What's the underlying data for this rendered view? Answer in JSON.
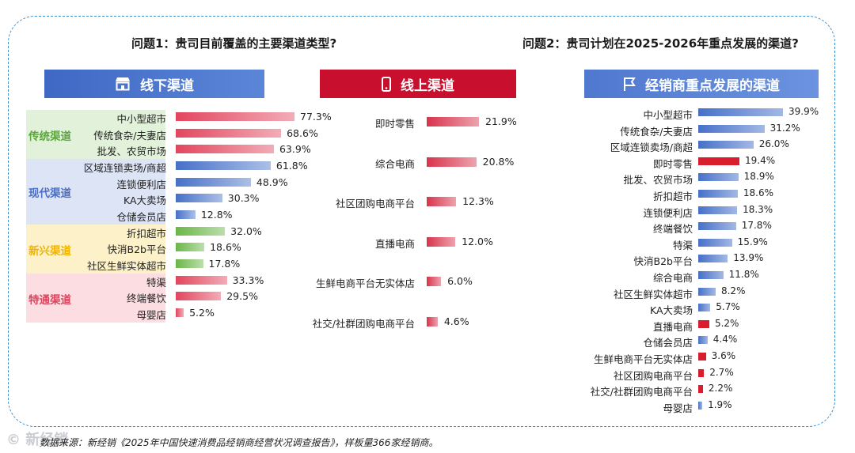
{
  "question1": "问题1：贵司目前覆盖的主要渠道类型?",
  "question2": "问题2：贵司计划在2025-2026年重点发展的渠道?",
  "banners": {
    "offline": "线下渠道",
    "online": "线上渠道",
    "distributor": "经销商重点发展的渠道"
  },
  "groups": [
    {
      "label": "传统渠道",
      "bg": "#e2f1da",
      "color": "#5aa838"
    },
    {
      "label": "现代渠道",
      "bg": "#dde4f6",
      "color": "#4a6fc8"
    },
    {
      "label": "新兴渠道",
      "bg": "#fcf1c8",
      "color": "#f0b400"
    },
    {
      "label": "特通渠道",
      "bg": "#fbdde2",
      "color": "#d8455e"
    }
  ],
  "source": "数据来源：新经销《2025年中国快速消费品经销商经营状况调查报告》，样板量366家经销商。",
  "watermark": "© 新经销",
  "chart_data": [
    {
      "type": "bar",
      "orientation": "horizontal",
      "title": "线下渠道",
      "categories": [
        "中小型超市",
        "传统食杂/夫妻店",
        "批发、农贸市场",
        "区域连锁卖场/商超",
        "连锁便利店",
        "KA大卖场",
        "仓储会员店",
        "折扣超市",
        "快消B2b平台",
        "社区生鲜实体超市",
        "特渠",
        "终端餐饮",
        "母婴店"
      ],
      "values": [
        77.3,
        68.6,
        63.9,
        61.8,
        48.9,
        30.3,
        12.8,
        32.0,
        18.6,
        17.8,
        33.3,
        29.5,
        5.2
      ],
      "labels": [
        "77.3%",
        "68.6%",
        "63.9%",
        "61.8%",
        "48.9%",
        "30.3%",
        "12.8%",
        "32.0%",
        "18.6%",
        "17.8%",
        "33.3%",
        "29.5%",
        "5.2%"
      ],
      "group_index": [
        0,
        0,
        0,
        1,
        1,
        1,
        1,
        2,
        2,
        2,
        3,
        3,
        3
      ],
      "group_colors": [
        "#e2465e",
        "#4670c8",
        "#6ab647",
        "#e2465e"
      ],
      "unit": "%"
    },
    {
      "type": "bar",
      "orientation": "horizontal",
      "title": "线上渠道",
      "categories": [
        "即时零售",
        "综合电商",
        "社区团购电商平台",
        "直播电商",
        "生鲜电商平台无实体店",
        "社交/社群团购电商平台"
      ],
      "values": [
        21.9,
        20.8,
        12.3,
        12.0,
        6.0,
        4.6
      ],
      "labels": [
        "21.9%",
        "20.8%",
        "12.3%",
        "12.0%",
        "6.0%",
        "4.6%"
      ],
      "color": "#d8334c",
      "unit": "%"
    },
    {
      "type": "bar",
      "orientation": "horizontal",
      "title": "经销商重点发展的渠道",
      "categories": [
        "中小型超市",
        "传统食杂/夫妻店",
        "区域连锁卖场/商超",
        "即时零售",
        "批发、农贸市场",
        "折扣超市",
        "连锁便利店",
        "终端餐饮",
        "特渠",
        "快消B2b平台",
        "综合电商",
        "社区生鲜实体超市",
        "KA大卖场",
        "直播电商",
        "仓储会员店",
        "生鲜电商平台无实体店",
        "社区团购电商平台",
        "社交/社群团购电商平台",
        "母婴店"
      ],
      "values": [
        39.9,
        31.2,
        26.0,
        19.4,
        18.9,
        18.6,
        18.3,
        17.8,
        15.9,
        13.9,
        11.8,
        8.2,
        5.7,
        5.2,
        4.4,
        3.6,
        2.7,
        2.2,
        1.9
      ],
      "labels": [
        "39.9%",
        "31.2%",
        "26.0%",
        "19.4%",
        "18.9%",
        "18.6%",
        "18.3%",
        "17.8%",
        "15.9%",
        "13.9%",
        "11.8%",
        "8.2%",
        "5.7%",
        "5.2%",
        "4.4%",
        "3.6%",
        "2.7%",
        "2.2%",
        "1.9%"
      ],
      "highlight": [
        "即时零售",
        "直播电商",
        "生鲜电商平台无实体店",
        "社区团购电商平台",
        "社交/社群团购电商平台"
      ],
      "color": "#4670c8",
      "highlight_color": "#d81e2c",
      "unit": "%"
    }
  ]
}
